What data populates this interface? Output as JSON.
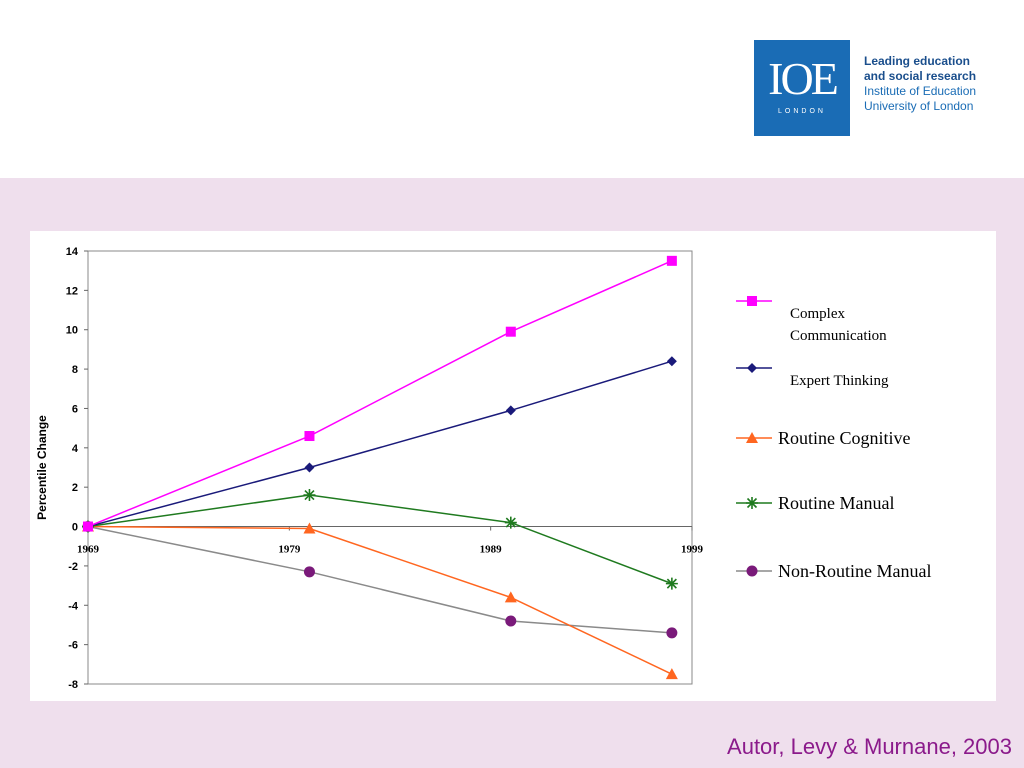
{
  "logo": {
    "mark": "IOE",
    "sub": "LONDON",
    "lines": [
      "Leading education",
      "and social research",
      "Institute of Education",
      "University of London"
    ],
    "colors": {
      "box": "#1a6cb5",
      "bold_text": "#1a4e8c"
    }
  },
  "citation": "Autor, Levy & Murnane, 2003",
  "chart_data": {
    "type": "line",
    "ylabel": "Percentile Change",
    "ylim": [
      -8,
      14
    ],
    "xlim": [
      1969,
      1999
    ],
    "yticks": [
      14,
      12,
      10,
      8,
      6,
      4,
      2,
      0,
      -2,
      -4,
      -6,
      -8
    ],
    "xticks": [
      1969,
      1979,
      1989,
      1999
    ],
    "grid": false,
    "legend_position": "right",
    "x": [
      1969,
      1980,
      1990,
      1998
    ],
    "series": [
      {
        "name": "Complex Communication",
        "label_lines": [
          "Complex",
          "Communication"
        ],
        "color": "#ff00ff",
        "marker": "square",
        "values": [
          0,
          4.6,
          9.9,
          13.5
        ]
      },
      {
        "name": "Expert Thinking",
        "label_lines": [
          "Expert Thinking"
        ],
        "color": "#1a1a7a",
        "marker": "diamond",
        "values": [
          0,
          3.0,
          5.9,
          8.4
        ]
      },
      {
        "name": "Routine Cognitive",
        "label_lines": [
          "Routine Cognitive"
        ],
        "color": "#ff6620",
        "marker": "triangle",
        "values": [
          0,
          -0.1,
          -3.6,
          -7.5
        ]
      },
      {
        "name": "Routine Manual",
        "label_lines": [
          "Routine Manual"
        ],
        "color": "#1f7a1f",
        "marker": "star",
        "values": [
          0,
          1.6,
          0.2,
          -2.9
        ]
      },
      {
        "name": "Non-Routine Manual",
        "label_lines": [
          "Non-Routine Manual"
        ],
        "color": "#8a8a8a",
        "marker": "circle",
        "marker_color": "#7a1a7a",
        "values": [
          0,
          -2.3,
          -4.8,
          -5.4
        ]
      }
    ]
  }
}
